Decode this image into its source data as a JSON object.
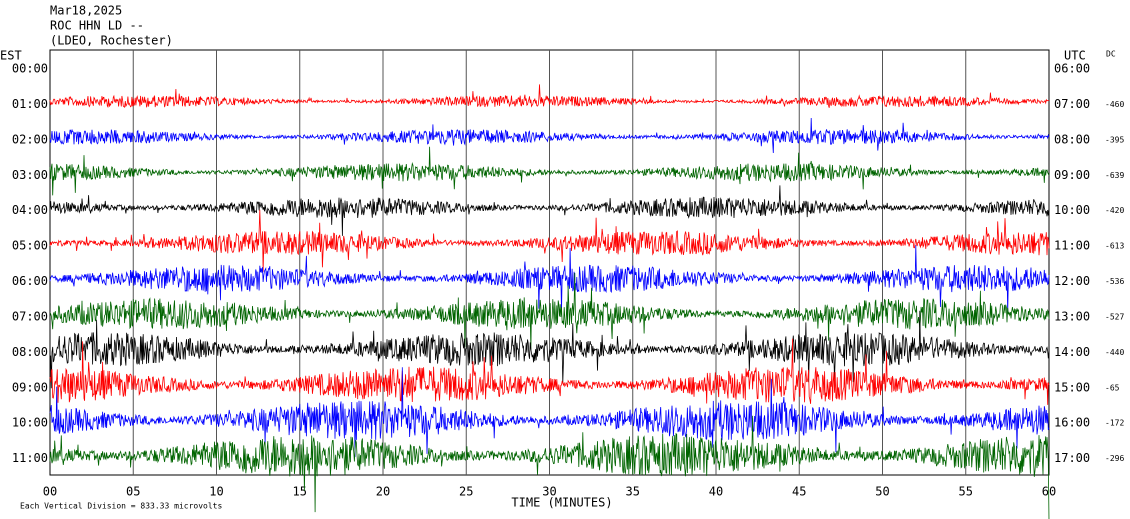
{
  "header": {
    "date": "Mar18,2025",
    "station": "ROC HHN LD --",
    "network": "(LDEO, Rochester)"
  },
  "axes": {
    "left_title": "EST",
    "right_title": "UTC",
    "dc_title": "DC",
    "x_title": "TIME (MINUTES)",
    "x_ticks": [
      "00",
      "05",
      "10",
      "15",
      "20",
      "25",
      "30",
      "35",
      "40",
      "45",
      "50",
      "55",
      "60"
    ]
  },
  "rows": [
    {
      "est": "00:00",
      "utc": "06:00"
    },
    {
      "est": "01:00",
      "utc": "07:00"
    },
    {
      "est": "02:00",
      "utc": "08:00"
    },
    {
      "est": "03:00",
      "utc": "09:00"
    },
    {
      "est": "04:00",
      "utc": "10:00"
    },
    {
      "est": "05:00",
      "utc": "11:00"
    },
    {
      "est": "06:00",
      "utc": "12:00"
    },
    {
      "est": "07:00",
      "utc": "13:00"
    },
    {
      "est": "08:00",
      "utc": "14:00"
    },
    {
      "est": "09:00",
      "utc": "15:00"
    },
    {
      "est": "10:00",
      "utc": "16:00"
    },
    {
      "est": "11:00",
      "utc": "17:00"
    }
  ],
  "traces": [
    {
      "color": "#ff0000",
      "dc": -460
    },
    {
      "color": "#0000ff",
      "dc": -395
    },
    {
      "color": "#006400",
      "dc": -639
    },
    {
      "color": "#000000",
      "dc": -420
    },
    {
      "color": "#ff0000",
      "dc": -613
    },
    {
      "color": "#0000ff",
      "dc": -536
    },
    {
      "color": "#006400",
      "dc": -527
    },
    {
      "color": "#000000",
      "dc": -440
    },
    {
      "color": "#ff0000",
      "dc": -65
    },
    {
      "color": "#0000ff",
      "dc": -172
    },
    {
      "color": "#006400",
      "dc": -296
    }
  ],
  "footnote": "Each Vertical Division = 833.33 microvolts"
}
